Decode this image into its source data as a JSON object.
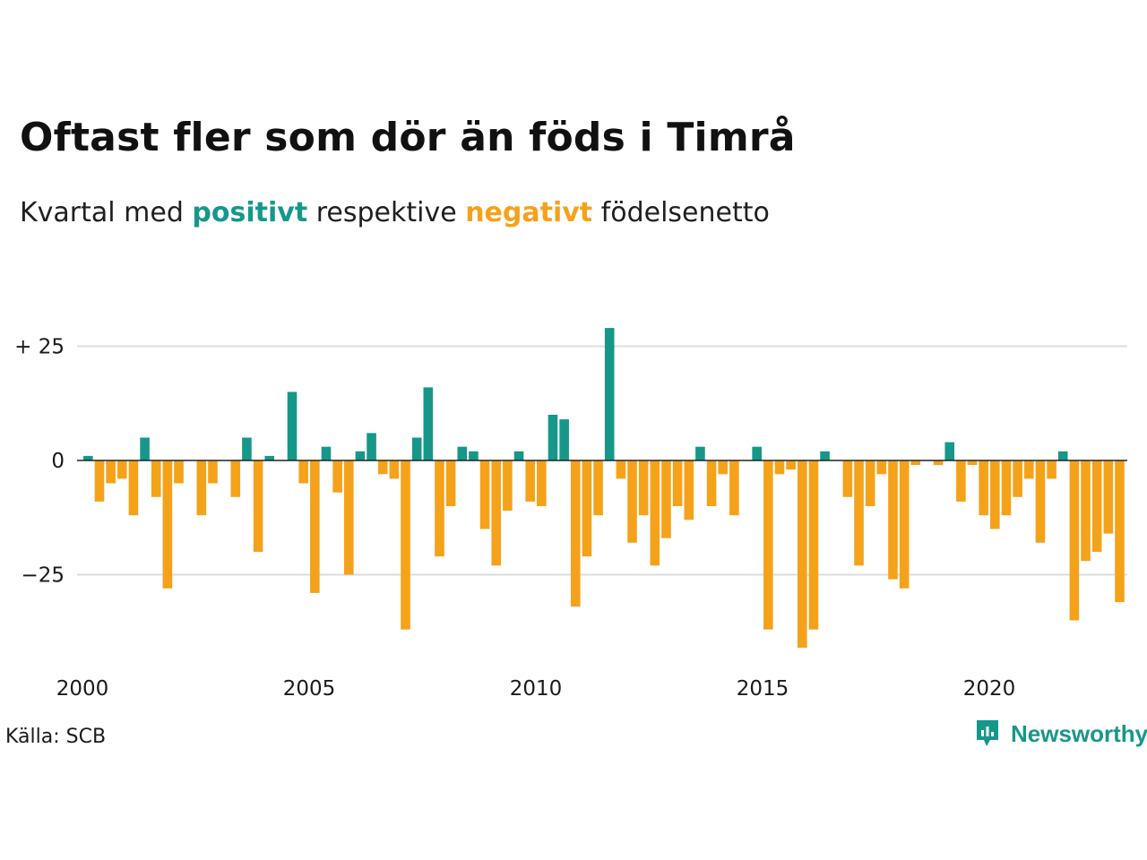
{
  "title": "Oftast fler som dör än föds i Timrå",
  "subtitle": {
    "before": "Kvartal med ",
    "positive": "positivt",
    "middle": " respektive ",
    "negative": "negativt",
    "after": " födelsenetto"
  },
  "source": "Källa: SCB",
  "brand": "Newsworthy",
  "brand_icon": "newsworthy-logo-icon",
  "colors": {
    "positive": "#17978a",
    "negative": "#f5a21b",
    "grid": "#dcdcdc",
    "zero_line": "#222222"
  },
  "chart_data": {
    "type": "bar",
    "x_start": "2000-Q1",
    "y_ticks": [
      25,
      0,
      -25
    ],
    "y_tick_labels": [
      "+ 25",
      "0",
      "−25"
    ],
    "x_ticks": [
      2000,
      2005,
      2010,
      2015,
      2020
    ],
    "x_tick_labels": [
      "2000",
      "2005",
      "2010",
      "2015",
      "2020"
    ],
    "ylim": [
      -42,
      30
    ],
    "grid": true,
    "values": [
      1,
      -9,
      -5,
      -4,
      -12,
      5,
      -8,
      -28,
      -5,
      0,
      -12,
      -5,
      0,
      -8,
      5,
      -20,
      1,
      0,
      15,
      -5,
      -29,
      3,
      -7,
      -25,
      2,
      6,
      -3,
      -4,
      -37,
      5,
      16,
      -21,
      -10,
      3,
      2,
      -15,
      -23,
      -11,
      2,
      -9,
      -10,
      10,
      9,
      -32,
      -21,
      -12,
      29,
      -4,
      -18,
      -12,
      -23,
      -17,
      -10,
      -13,
      3,
      -10,
      -3,
      -12,
      0,
      3,
      -37,
      -3,
      -2,
      -41,
      -37,
      2,
      0,
      -8,
      -23,
      -10,
      -3,
      -26,
      -28,
      -1,
      0,
      -1,
      4,
      -9,
      -1,
      -12,
      -15,
      -12,
      -8,
      -4,
      -18,
      -4,
      2,
      -35,
      -22,
      -20,
      -16,
      -31
    ]
  }
}
